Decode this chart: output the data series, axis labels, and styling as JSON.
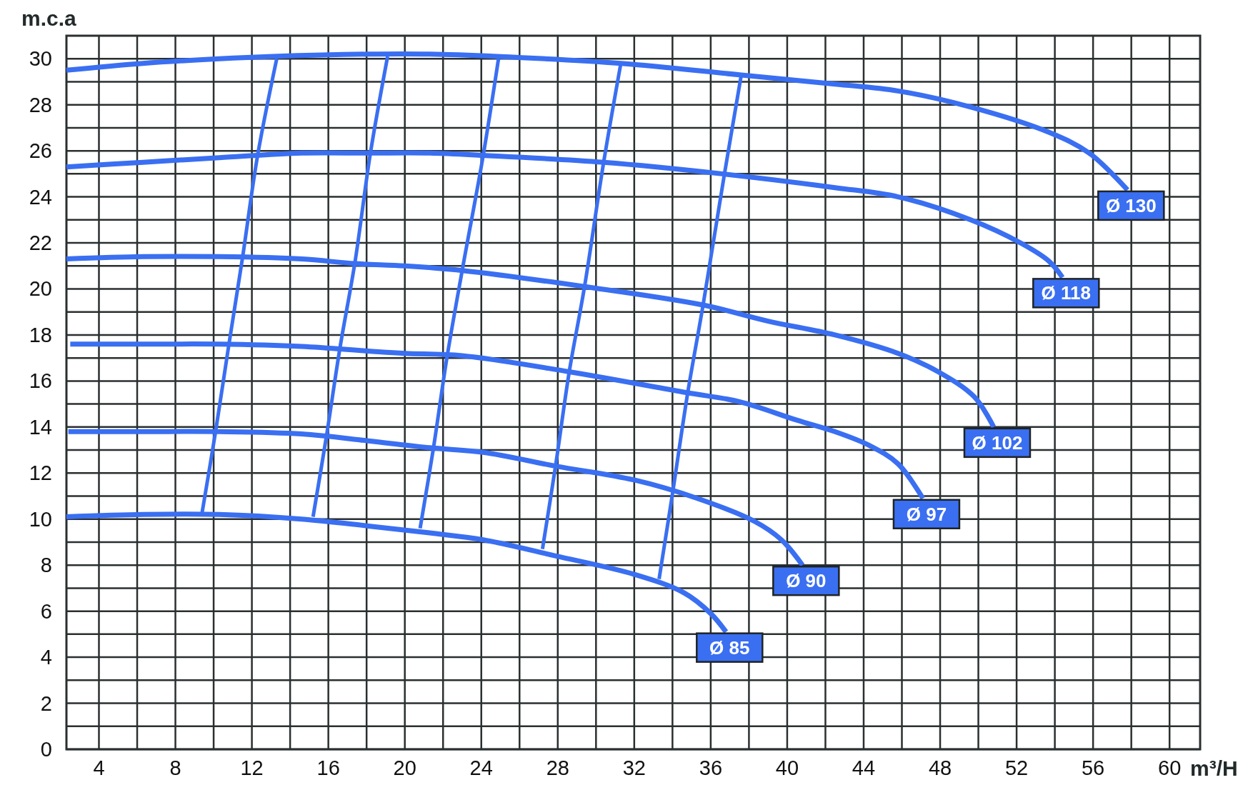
{
  "chart_data": {
    "type": "line",
    "xlabel": "m³/H",
    "ylabel": "m.c.a",
    "xlim": [
      2.3,
      61.6
    ],
    "ylim": [
      0,
      31
    ],
    "xticks": [
      4,
      {
        "value": 6,
        "label": null
      },
      8,
      {
        "value": 10,
        "label": null
      },
      12,
      {
        "value": 14,
        "label": null
      },
      16,
      {
        "value": 18,
        "label": null
      },
      20,
      {
        "value": 22,
        "label": null
      },
      24,
      {
        "value": 26,
        "label": null
      },
      28,
      {
        "value": 30,
        "label": null
      },
      32,
      {
        "value": 34,
        "label": null
      },
      36,
      {
        "value": 38,
        "label": null
      },
      40,
      {
        "value": 42,
        "label": null
      },
      44,
      {
        "value": 46,
        "label": null
      },
      48,
      {
        "value": 50,
        "label": null
      },
      52,
      {
        "value": 54,
        "label": null
      },
      56,
      {
        "value": 58,
        "label": null
      },
      60
    ],
    "yticks": [
      0,
      {
        "value": 1,
        "label": null
      },
      2,
      {
        "value": 3,
        "label": null
      },
      4,
      {
        "value": 5,
        "label": null
      },
      6,
      {
        "value": 7,
        "label": null
      },
      8,
      {
        "value": 9,
        "label": null
      },
      10,
      {
        "value": 11,
        "label": null
      },
      12,
      {
        "value": 13,
        "label": null
      },
      14,
      {
        "value": 15,
        "label": null
      },
      16,
      {
        "value": 17,
        "label": null
      },
      18,
      {
        "value": 19,
        "label": null
      },
      20,
      {
        "value": 21,
        "label": null
      },
      22,
      {
        "value": 23,
        "label": null
      },
      24,
      {
        "value": 25,
        "label": null
      },
      26,
      {
        "value": 27,
        "label": null
      },
      28,
      {
        "value": 29,
        "label": null
      },
      30
    ],
    "grid": true,
    "series": [
      {
        "color": "#3a6ff2",
        "x": [
          13.3,
          12.3,
          11.5,
          10.8,
          10.1,
          9.4
        ],
        "values": [
          30.0,
          25.8,
          21.3,
          17.6,
          13.8,
          10.3
        ]
      },
      {
        "color": "#3a6ff2",
        "x": [
          19.1,
          18.2,
          17.4,
          16.6,
          15.9,
          15.2
        ],
        "values": [
          30.1,
          25.9,
          21.2,
          17.4,
          13.6,
          10.1
        ]
      },
      {
        "color": "#3a6ff2",
        "x": [
          24.9,
          24.1,
          23.0,
          22.2,
          21.5,
          20.8
        ],
        "values": [
          30.0,
          25.8,
          20.8,
          17.0,
          13.1,
          9.6
        ]
      },
      {
        "color": "#3a6ff2",
        "x": [
          31.3,
          30.4,
          29.4,
          28.6,
          27.9,
          27.2
        ],
        "values": [
          29.8,
          25.5,
          20.1,
          16.4,
          12.4,
          8.7
        ]
      },
      {
        "color": "#3a6ff2",
        "x": [
          37.6,
          36.7,
          35.6,
          34.8,
          34.0,
          33.3
        ],
        "values": [
          29.3,
          24.9,
          19.3,
          15.5,
          11.1,
          7.4
        ]
      },
      {
        "name": "Ø 130",
        "color": "#3a6ff2",
        "x": [
          2.3,
          6.3,
          10.3,
          13.1,
          18.1,
          21.3,
          24.8,
          31.3,
          37.5,
          42.5,
          45.8,
          49.6,
          53.7,
          55.8,
          57.8
        ],
        "values": [
          29.5,
          29.8,
          30.0,
          30.1,
          30.2,
          30.2,
          30.1,
          29.8,
          29.3,
          28.9,
          28.6,
          27.9,
          26.8,
          25.9,
          24.3
        ]
      },
      {
        "name": "Ø 118",
        "color": "#3a6ff2",
        "x": [
          2.3,
          6.3,
          10.3,
          14.6,
          18.1,
          21.3,
          24.1,
          30.4,
          36.6,
          42.5,
          45.8,
          49.6,
          52.2,
          53.7,
          54.4
        ],
        "values": [
          25.3,
          25.5,
          25.7,
          25.9,
          25.9,
          25.9,
          25.8,
          25.5,
          25.0,
          24.4,
          24.0,
          23.0,
          22.0,
          21.2,
          20.5
        ]
      },
      {
        "name": "Ø 102",
        "color": "#3a6ff2",
        "x": [
          2.3,
          6.3,
          10.3,
          14.6,
          17.4,
          20.0,
          23.0,
          29.4,
          35.6,
          39.0,
          42.5,
          45.8,
          47.9,
          49.8,
          50.8
        ],
        "values": [
          21.3,
          21.4,
          21.4,
          21.3,
          21.1,
          21.0,
          20.8,
          20.1,
          19.3,
          18.6,
          18.0,
          17.2,
          16.4,
          15.3,
          14.0
        ]
      },
      {
        "name": "Ø 97",
        "color": "#3a6ff2",
        "x": [
          2.5,
          6.3,
          10.3,
          14.6,
          18.1,
          20.0,
          23.0,
          28.6,
          34.7,
          37.5,
          40.5,
          42.5,
          44.3,
          45.8,
          47.1
        ],
        "values": [
          17.6,
          17.6,
          17.6,
          17.5,
          17.3,
          17.2,
          17.1,
          16.4,
          15.5,
          15.1,
          14.3,
          13.8,
          13.2,
          12.4,
          10.9
        ]
      },
      {
        "name": "Ø 90",
        "color": "#3a6ff2",
        "x": [
          2.4,
          6.3,
          10.3,
          14.6,
          18.1,
          21.3,
          24.1,
          27.9,
          32.0,
          35.3,
          38.3,
          39.7,
          40.8
        ],
        "values": [
          13.8,
          13.8,
          13.8,
          13.7,
          13.4,
          13.1,
          12.9,
          12.3,
          11.7,
          10.9,
          9.9,
          9.1,
          8.0
        ]
      },
      {
        "name": "Ø 85",
        "color": "#3a6ff2",
        "x": [
          2.3,
          6.3,
          10.3,
          14.6,
          18.1,
          21.3,
          24.1,
          27.9,
          32.0,
          34.6,
          36.0,
          36.8
        ],
        "values": [
          10.1,
          10.2,
          10.2,
          10.0,
          9.7,
          9.4,
          9.1,
          8.4,
          7.6,
          6.8,
          5.9,
          5.1
        ]
      }
    ]
  }
}
